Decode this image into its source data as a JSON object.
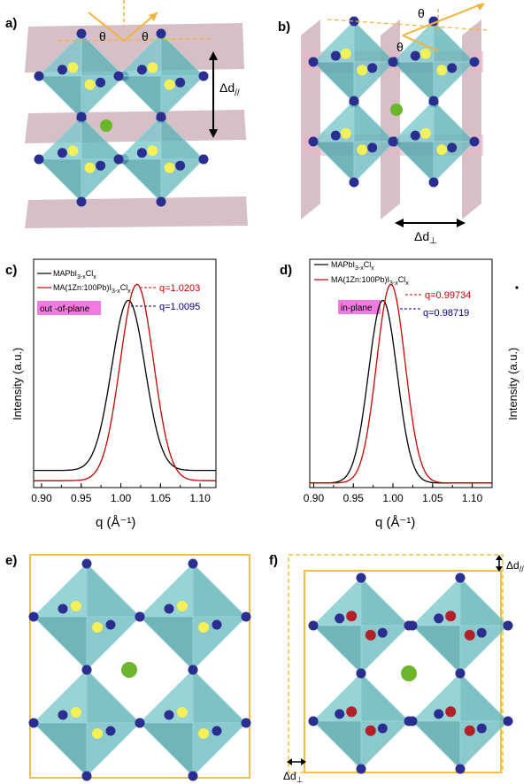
{
  "panels": {
    "a": {
      "label": "a)",
      "delta": "Δd",
      "delta_sub": "//",
      "theta": "θ"
    },
    "b": {
      "label": "b)",
      "delta": "Δd",
      "delta_sub": "⊥",
      "theta": "θ"
    },
    "e": {
      "label": "e)"
    },
    "f": {
      "label": "f)",
      "delta_par": "Δd",
      "delta_par_sub": "//",
      "delta_perp": "Δd",
      "delta_perp_sub": "⊥"
    }
  },
  "chart_data": [
    {
      "panel_label": "c)",
      "type": "line",
      "tag": "out -of-plane",
      "xlabel": "q (Å⁻¹)",
      "ylabel": "Intensity (a.u.)",
      "xlim": [
        0.89,
        1.12
      ],
      "xticks": [
        "0.90",
        "0.95",
        "1.00",
        "1.05",
        "1.10"
      ],
      "series": [
        {
          "name": "MAPbI3-xClx",
          "name_main": "MAPbI",
          "name_sub1": "3-x",
          "name_mid": "Cl",
          "name_sub2": "x",
          "color": "#000000",
          "center": 1.0095,
          "width": 0.021,
          "peak": 0.82,
          "base": 0.075
        },
        {
          "name": "MA(1Zn:100Pb)I3-xClx",
          "name_main": "MA(1Zn:100Pb)I",
          "name_sub1": "3-x",
          "name_mid": "Cl",
          "name_sub2": "x",
          "color": "#cc0000",
          "center": 1.0203,
          "width": 0.021,
          "peak": 0.89,
          "base": 0.03
        }
      ],
      "annotations": [
        {
          "text": "q=1.0203",
          "color": "#cc0000"
        },
        {
          "text": "q=1.0095",
          "color": "#000080"
        }
      ]
    },
    {
      "panel_label": "d)",
      "type": "line",
      "tag": "in-plane",
      "xlabel": "q (Å⁻¹)",
      "ylabel": "Intensity (a.u.)",
      "xlim": [
        0.895,
        1.125
      ],
      "xticks": [
        "0.90",
        "0.95",
        "1.00",
        "1.05",
        "1.10"
      ],
      "series": [
        {
          "name": "MAPbI3-xClx",
          "name_main": "MAPbI",
          "name_sub1": "3-x",
          "name_mid": "Cl",
          "name_sub2": "x",
          "color": "#000000",
          "center": 0.98719,
          "width": 0.018,
          "peak": 0.82,
          "base": 0.02
        },
        {
          "name": "MA(1Zn:100Pb)I3-xClx",
          "name_main": "MA(1Zn:100Pb)I",
          "name_sub1": "3-x",
          "name_mid": "Cl",
          "name_sub2": "x",
          "color": "#cc0000",
          "center": 0.99734,
          "width": 0.018,
          "peak": 0.89,
          "base": 0.02
        }
      ],
      "annotations": [
        {
          "text": "q=0.99734",
          "color": "#cc0000"
        },
        {
          "text": "q=0.98719",
          "color": "#000080"
        }
      ]
    }
  ]
}
